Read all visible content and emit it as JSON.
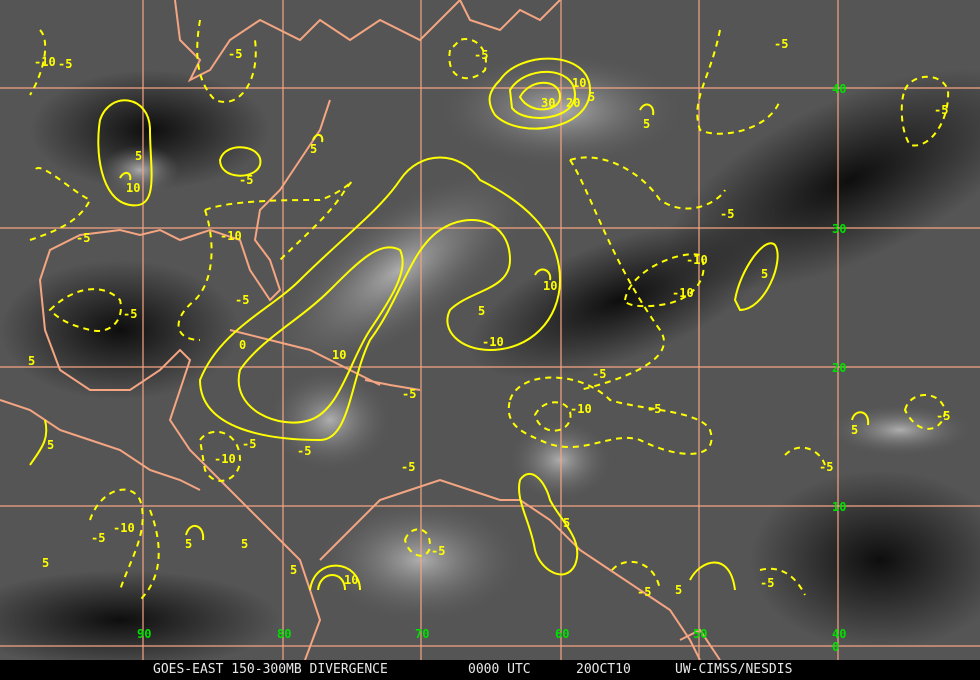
{
  "caption": {
    "product": "GOES-EAST 150-300MB DIVERGENCE",
    "time": "0000 UTC",
    "date": "20OCT10",
    "source": "UW-CIMSS/NESDIS"
  },
  "grid": {
    "latitude_labels": [
      "40",
      "30",
      "20",
      "10",
      "0"
    ],
    "longitude_labels": [
      "90",
      "80",
      "70",
      "60",
      "50",
      "40"
    ]
  },
  "contour_labels": [
    "-10",
    "-5",
    "-5",
    "-5",
    "10",
    "30",
    "20",
    "5",
    "5",
    "-5",
    "-5",
    "5",
    "10",
    "5",
    "-5",
    "-5",
    "-10",
    "-5",
    "10",
    "-10",
    "-10",
    "5",
    "-5",
    "-5",
    "5",
    "-10",
    "10",
    "0",
    "5",
    "-5",
    "-5",
    "-10",
    "-5",
    "-5",
    "5",
    "5",
    "-5",
    "-10",
    "-5",
    "-5",
    "-5",
    "5",
    "-10",
    "-5",
    "5",
    "5",
    "-5",
    "5",
    "5",
    "10",
    "-5",
    "-5",
    "5"
  ],
  "colors": {
    "contour": "#ffff00",
    "coastline": "#f4a582",
    "gridline": "#f4a582",
    "grid_label": "#00e000",
    "caption_text": "#e8e8e8"
  }
}
